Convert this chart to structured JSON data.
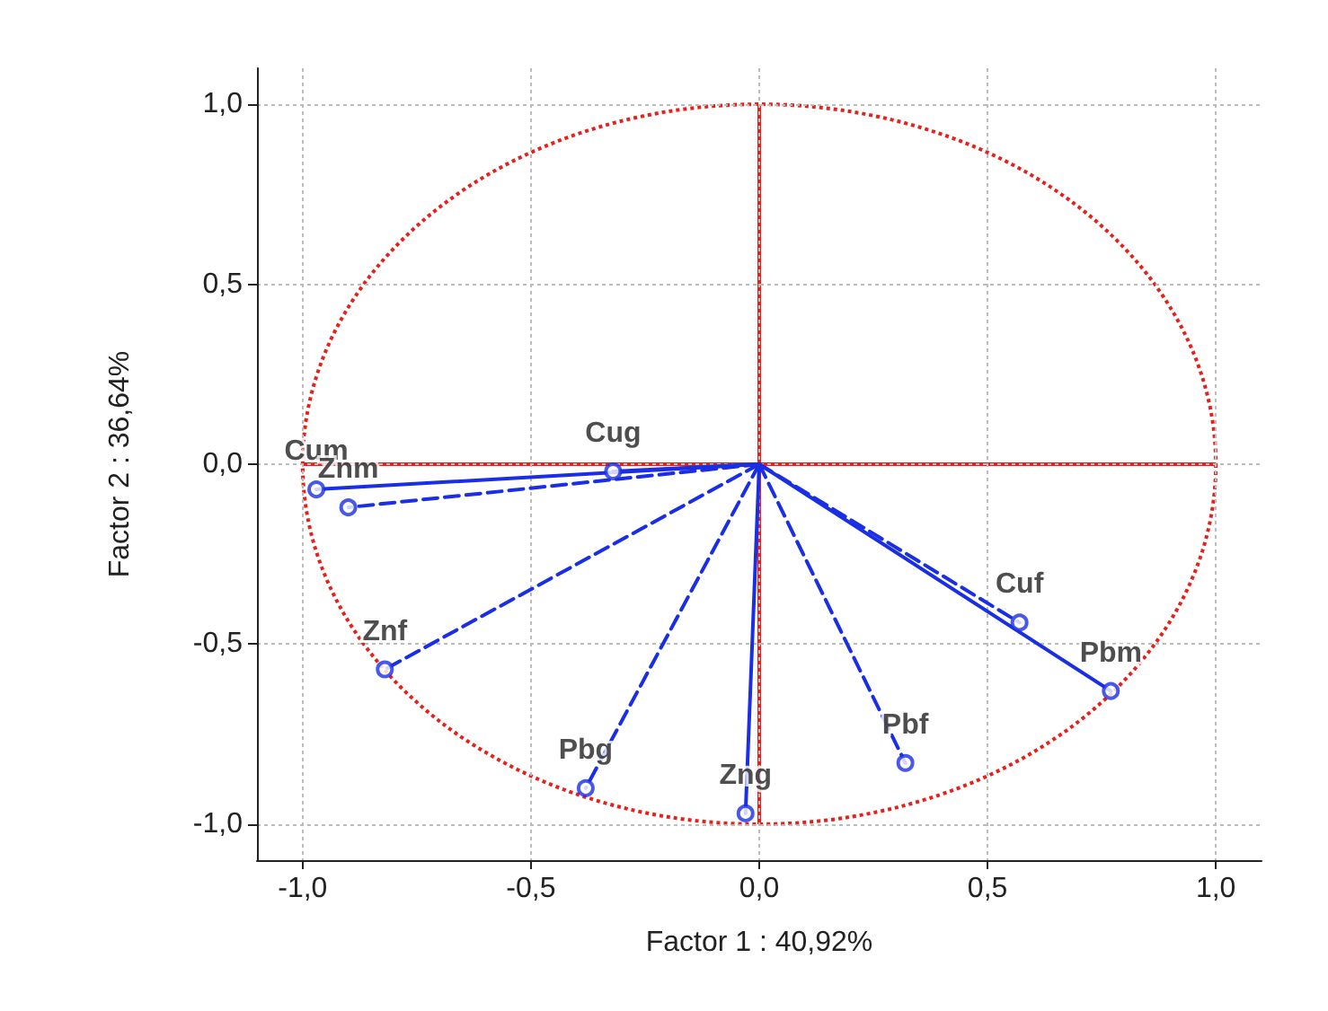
{
  "chart_data": {
    "type": "scatter",
    "xlabel": "Factor 1 : 40,92%",
    "ylabel": "Factor 2 : 36,64%",
    "xlim": [
      -1.1,
      1.1
    ],
    "ylim": [
      -1.1,
      1.1
    ],
    "xticks": [
      {
        "value": -1,
        "label": "-1,0"
      },
      {
        "value": -0.5,
        "label": "-0,5"
      },
      {
        "value": 0,
        "label": "0,0"
      },
      {
        "value": 0.5,
        "label": "0,5"
      },
      {
        "value": 1,
        "label": "1,0"
      }
    ],
    "yticks": [
      {
        "value": -1,
        "label": "-1,0"
      },
      {
        "value": -0.5,
        "label": "-0,5"
      },
      {
        "value": 0,
        "label": "0,0"
      },
      {
        "value": 0.5,
        "label": "0,5"
      },
      {
        "value": 1,
        "label": "1,0"
      }
    ],
    "grid": true,
    "series": [
      {
        "type": "line",
        "color": "#1a2ee6",
        "line_style": "solid",
        "marker": "none",
        "x": [
          0,
          -0.97
        ],
        "values": [
          0,
          -0.07
        ]
      },
      {
        "type": "line",
        "color": "#1a2ee6",
        "line_style": "dashed",
        "marker": "none",
        "x": [
          0,
          -0.9
        ],
        "values": [
          0,
          -0.12
        ]
      },
      {
        "type": "line",
        "color": "#1a2ee6",
        "line_style": "solid",
        "marker": "none",
        "x": [
          0,
          -0.32
        ],
        "values": [
          0,
          -0.02
        ]
      },
      {
        "type": "line",
        "color": "#1a2ee6",
        "line_style": "dashed",
        "marker": "none",
        "x": [
          0,
          -0.82
        ],
        "values": [
          0,
          -0.57
        ]
      },
      {
        "type": "line",
        "color": "#1a2ee6",
        "line_style": "dashed",
        "marker": "none",
        "x": [
          0,
          -0.38
        ],
        "values": [
          0,
          -0.9
        ]
      },
      {
        "type": "line",
        "color": "#1a2ee6",
        "line_style": "solid",
        "marker": "none",
        "x": [
          0,
          -0.03
        ],
        "values": [
          0,
          -0.97
        ]
      },
      {
        "type": "line",
        "color": "#1a2ee6",
        "line_style": "dashed",
        "marker": "none",
        "x": [
          0,
          0.32
        ],
        "values": [
          0,
          -0.83
        ]
      },
      {
        "type": "line",
        "color": "#1a2ee6",
        "line_style": "dashed",
        "marker": "none",
        "x": [
          0,
          0.57
        ],
        "values": [
          0,
          -0.44
        ]
      },
      {
        "type": "line",
        "color": "#1a2ee6",
        "line_style": "solid",
        "marker": "none",
        "x": [
          0,
          0.77
        ],
        "values": [
          0,
          -0.63
        ]
      },
      {
        "color": "#1a2ee6",
        "marker": "circle",
        "x": [
          -0.97,
          -0.9,
          -0.32,
          -0.82,
          -0.38,
          -0.03,
          0.32,
          0.57,
          0.77
        ],
        "values": [
          -0.07,
          -0.12,
          -0.02,
          -0.57,
          -0.9,
          -0.97,
          -0.83,
          -0.44,
          -0.63
        ],
        "value_labels": [
          "Cum",
          "Znm",
          "Cug",
          "Znf",
          "Pbg",
          "Zng",
          "Pbf",
          "Cuf",
          "Pbm"
        ]
      }
    ]
  }
}
